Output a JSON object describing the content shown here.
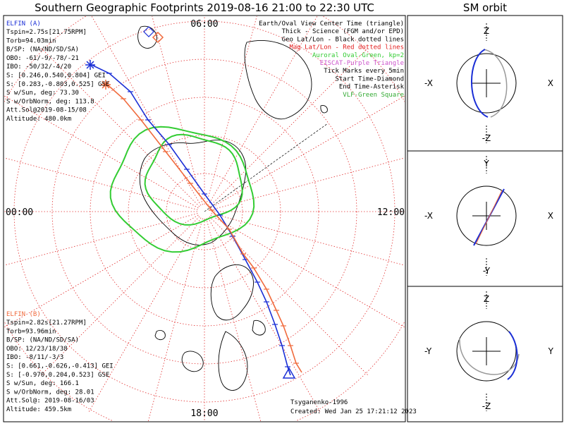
{
  "title": "Southern Geographic Footprints 2019-08-16 21:00 to 22:30 UTC",
  "orbit_title": "SM orbit",
  "colors": {
    "elfin_a": "#1a2ed6",
    "elfin_b": "#f06a3c",
    "aurora": "#33cc33",
    "grid": "#e23030",
    "eiscat": "#cc55cc",
    "vlf": "#33aa33",
    "coast": "#000000",
    "panel_border": "#000000"
  },
  "legend": [
    {
      "text": "Earth/Oval View Center Time (triangle)",
      "color": "#000000"
    },
    {
      "text": "Thick - Science (FGM and/or EPD)",
      "color": "#000000"
    },
    {
      "text": "Geo Lat/Lon - Black dotted lines",
      "color": "#000000"
    },
    {
      "text": "Mag Lat/Lon - Red dotted lines",
      "color": "#e21b1b"
    },
    {
      "text": "Auroral Oval-Green, kp=2",
      "color": "#33cc33"
    },
    {
      "text": "EISCAT-Purple Triangle",
      "color": "#cc55cc"
    },
    {
      "text": "Tick Marks every 5min",
      "color": "#000000"
    },
    {
      "text": "Start Time-Diamond",
      "color": "#000000"
    },
    {
      "text": "End Time-Asterisk",
      "color": "#000000"
    },
    {
      "text": "VLF-Green Square",
      "color": "#33aa33"
    }
  ],
  "elfin_a": {
    "label": "ELFIN (A)",
    "lines": [
      "Tspin=2.75s[21.75RPM]",
      "Torb=94.03min",
      "B/SP: (NA/ND/SD/SA)",
      "OBO: -61/-9/-78/-21",
      "IBO: -50/32/-4/20",
      "S: [0.246,0.540,0.804] GEI",
      "S: [0.283,-0.803,0.525] GSE",
      "S w/Sun, deg: 73.30",
      "S w/OrbNorm, deg: 113.8",
      "Att.Sol@2019-08-15/08",
      "Altitude: 480.0km"
    ]
  },
  "elfin_b": {
    "label": "ELFIN (B)",
    "lines": [
      "Tspin=2.82s[21.27RPM]",
      "Torb=93.96min",
      "B/SP: (NA/ND/SD/SA)",
      "OBO: 12/23/18/38",
      "IBO: -8/11/-3/3",
      "S: [0.661,-0.626,-0.413] GEI",
      "S: [-0.970,0.204,0.523] GSE",
      "S w/Sun, deg: 166.1",
      "S w/OrbNorm, deg: 28.01",
      "Att.Sol@: 2019-08-16/03",
      "Altitude: 459.5km"
    ]
  },
  "mlt_labels": {
    "top": "06:00",
    "left": "00:00",
    "right": "12:00",
    "bottom": "18:00"
  },
  "model": "Tsyganenko-1996",
  "created": "Created: Wed Jan 25 17:21:12 2023",
  "orbit_panels": [
    {
      "top": "Z",
      "bottom": "-Z",
      "left": "-X",
      "right": "X"
    },
    {
      "top": "Y",
      "bottom": "-Y",
      "left": "-X",
      "right": "X"
    },
    {
      "top": "Z",
      "bottom": "-Z",
      "left": "-Y",
      "right": "Y"
    }
  ],
  "chart_data": {
    "type": "polar footprint map",
    "hemisphere": "south",
    "time_range": [
      "2019-08-16 21:00",
      "2019-08-16 22:30"
    ],
    "mag_lat_circles_deg": [
      -90,
      -80,
      -70,
      -60,
      -50
    ],
    "mlt_spokes_count": 24,
    "tick_interval_min": 5,
    "series": [
      {
        "name": "ELFIN (A)",
        "color": "#1a2ed6",
        "start_marker": "diamond",
        "end_marker": "asterisk"
      },
      {
        "name": "ELFIN (B)",
        "color": "#f06a3c",
        "start_marker": "diamond",
        "end_marker": "asterisk"
      }
    ],
    "auroral_oval_kp": 2
  }
}
